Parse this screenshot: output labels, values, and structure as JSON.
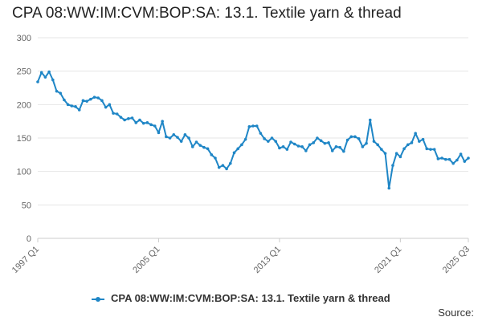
{
  "chart_data": {
    "type": "line",
    "title": "CPA 08:WW:IM:CVM:BOP:SA: 13.1. Textile yarn & thread",
    "xlabel": "",
    "ylabel": "",
    "y_ticks": [
      0,
      50,
      100,
      150,
      200,
      250,
      300
    ],
    "ylim": [
      0,
      300
    ],
    "x_tick_labels": [
      "1997 Q1",
      "2005 Q1",
      "2013 Q1",
      "2021 Q1",
      "2025 Q3"
    ],
    "x_start": "1997 Q1",
    "x_end": "2025 Q3",
    "grid": true,
    "legend_position": "bottom",
    "series": [
      {
        "name": "CPA 08:WW:IM:CVM:BOP:SA: 13.1. Textile yarn & thread",
        "color": "#1f86c6",
        "x": [
          "1997 Q1",
          "1997 Q2",
          "1997 Q3",
          "1997 Q4",
          "1998 Q1",
          "1998 Q2",
          "1998 Q3",
          "1998 Q4",
          "1999 Q1",
          "1999 Q2",
          "1999 Q3",
          "1999 Q4",
          "2000 Q1",
          "2000 Q2",
          "2000 Q3",
          "2000 Q4",
          "2001 Q1",
          "2001 Q2",
          "2001 Q3",
          "2001 Q4",
          "2002 Q1",
          "2002 Q2",
          "2002 Q3",
          "2002 Q4",
          "2003 Q1",
          "2003 Q2",
          "2003 Q3",
          "2003 Q4",
          "2004 Q1",
          "2004 Q2",
          "2004 Q3",
          "2004 Q4",
          "2005 Q1",
          "2005 Q2",
          "2005 Q3",
          "2005 Q4",
          "2006 Q1",
          "2006 Q2",
          "2006 Q3",
          "2006 Q4",
          "2007 Q1",
          "2007 Q2",
          "2007 Q3",
          "2007 Q4",
          "2008 Q1",
          "2008 Q2",
          "2008 Q3",
          "2008 Q4",
          "2009 Q1",
          "2009 Q2",
          "2009 Q3",
          "2009 Q4",
          "2010 Q1",
          "2010 Q2",
          "2010 Q3",
          "2010 Q4",
          "2011 Q1",
          "2011 Q2",
          "2011 Q3",
          "2011 Q4",
          "2012 Q1",
          "2012 Q2",
          "2012 Q3",
          "2012 Q4",
          "2013 Q1",
          "2013 Q2",
          "2013 Q3",
          "2013 Q4",
          "2014 Q1",
          "2014 Q2",
          "2014 Q3",
          "2014 Q4",
          "2015 Q1",
          "2015 Q2",
          "2015 Q3",
          "2015 Q4",
          "2016 Q1",
          "2016 Q2",
          "2016 Q3",
          "2016 Q4",
          "2017 Q1",
          "2017 Q2",
          "2017 Q3",
          "2017 Q4",
          "2018 Q1",
          "2018 Q2",
          "2018 Q3",
          "2018 Q4",
          "2019 Q1",
          "2019 Q2",
          "2019 Q3",
          "2019 Q4",
          "2020 Q1",
          "2020 Q2",
          "2020 Q3",
          "2020 Q4",
          "2021 Q1",
          "2021 Q2",
          "2021 Q3",
          "2021 Q4",
          "2022 Q1",
          "2022 Q2",
          "2022 Q3",
          "2022 Q4",
          "2023 Q1",
          "2023 Q2",
          "2023 Q3",
          "2023 Q4",
          "2024 Q1",
          "2024 Q2",
          "2024 Q3",
          "2024 Q4",
          "2025 Q1",
          "2025 Q2",
          "2025 Q3"
        ],
        "values": [
          234,
          248,
          241,
          249,
          237,
          220,
          217,
          207,
          200,
          198,
          197,
          192,
          206,
          205,
          208,
          211,
          210,
          206,
          196,
          200,
          187,
          186,
          181,
          177,
          179,
          180,
          173,
          177,
          172,
          173,
          170,
          168,
          158,
          175,
          152,
          150,
          155,
          151,
          145,
          155,
          150,
          137,
          144,
          139,
          136,
          134,
          125,
          120,
          106,
          109,
          104,
          112,
          128,
          134,
          140,
          148,
          167,
          168,
          168,
          157,
          149,
          145,
          150,
          145,
          135,
          137,
          133,
          144,
          141,
          138,
          137,
          131,
          140,
          143,
          150,
          146,
          142,
          143,
          131,
          137,
          136,
          130,
          147,
          152,
          152,
          149,
          137,
          142,
          177,
          145,
          140,
          133,
          127,
          75,
          109,
          127,
          122,
          134,
          140,
          143,
          157,
          145,
          148,
          134,
          133,
          133,
          119,
          120,
          118,
          118,
          112,
          117,
          126,
          115,
          120
        ]
      }
    ]
  },
  "source_label": "Source:"
}
